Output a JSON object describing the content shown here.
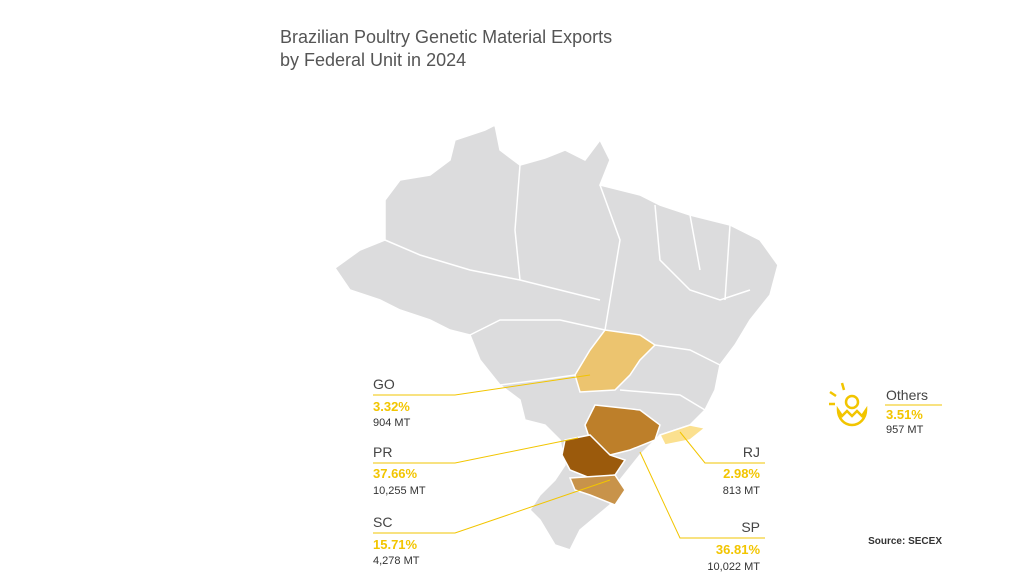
{
  "header": {
    "title_lines": [
      "Brazilian Poultry Genetic Material Exports",
      "by Federal Unit in 2024"
    ]
  },
  "states": [
    {
      "code": "GO",
      "share": "3.32%",
      "volume": "904 MT"
    },
    {
      "code": "PR",
      "share": "37.66%",
      "volume": "10,255 MT"
    },
    {
      "code": "SC",
      "share": "15.71%",
      "volume": "4,278 MT"
    },
    {
      "code": "RJ",
      "share": "2.98%",
      "volume": "813 MT"
    },
    {
      "code": "SP",
      "share": "36.81%",
      "volume": "10,022 MT"
    }
  ],
  "others": {
    "label": "Others",
    "share": "3.51%",
    "volume": "957 MT"
  },
  "source": "Source: SECEX"
}
